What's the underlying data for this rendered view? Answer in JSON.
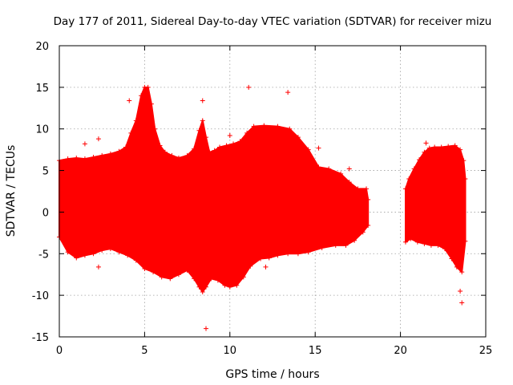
{
  "chart_data": {
    "type": "scatter",
    "title": "Day 177 of 2011, Sidereal Day-to-day VTEC variation (SDTVAR) for receiver mizu",
    "xlabel": "GPS time / hours",
    "ylabel": "SDTVAR / TECUs",
    "xlim": [
      0,
      25
    ],
    "ylim": [
      -15,
      20
    ],
    "xticks": [
      0,
      5,
      10,
      15,
      20,
      25
    ],
    "yticks": [
      -15,
      -10,
      -5,
      0,
      5,
      10,
      15,
      20
    ],
    "grid": true,
    "marker": "+",
    "colors": {
      "series": "#ff0000",
      "grid": "#a0a0a0",
      "axis": "#000000"
    },
    "series": [
      {
        "name": "SDTVAR",
        "envelope_upper": [
          [
            0.0,
            6.2
          ],
          [
            0.5,
            6.4
          ],
          [
            1.0,
            6.5
          ],
          [
            1.5,
            6.4
          ],
          [
            2.0,
            6.6
          ],
          [
            2.5,
            6.8
          ],
          [
            3.0,
            7.0
          ],
          [
            3.5,
            7.3
          ],
          [
            3.9,
            7.8
          ],
          [
            4.2,
            9.5
          ],
          [
            4.5,
            11.0
          ],
          [
            4.8,
            14.0
          ],
          [
            5.0,
            15.0
          ],
          [
            5.2,
            15.0
          ],
          [
            5.4,
            13.0
          ],
          [
            5.6,
            10.0
          ],
          [
            5.9,
            8.0
          ],
          [
            6.2,
            7.2
          ],
          [
            6.6,
            6.8
          ],
          [
            7.0,
            6.5
          ],
          [
            7.5,
            6.8
          ],
          [
            7.9,
            7.6
          ],
          [
            8.2,
            9.8
          ],
          [
            8.4,
            11.0
          ],
          [
            8.6,
            9.0
          ],
          [
            8.8,
            7.2
          ],
          [
            9.1,
            7.4
          ],
          [
            9.4,
            7.8
          ],
          [
            9.8,
            8.0
          ],
          [
            10.2,
            8.2
          ],
          [
            10.6,
            8.5
          ],
          [
            11.0,
            9.5
          ],
          [
            11.4,
            10.3
          ],
          [
            12.0,
            10.4
          ],
          [
            12.8,
            10.3
          ],
          [
            13.5,
            10.0
          ],
          [
            14.0,
            9.0
          ],
          [
            14.6,
            7.5
          ],
          [
            15.2,
            5.4
          ],
          [
            15.8,
            5.2
          ],
          [
            16.5,
            4.6
          ],
          [
            17.0,
            3.6
          ],
          [
            17.5,
            2.8
          ],
          [
            18.0,
            2.8
          ],
          [
            18.1,
            1.5
          ]
        ],
        "envelope_lower": [
          [
            0.0,
            -3.0
          ],
          [
            0.5,
            -4.8
          ],
          [
            1.0,
            -5.5
          ],
          [
            1.5,
            -5.2
          ],
          [
            2.0,
            -5.0
          ],
          [
            2.5,
            -4.6
          ],
          [
            3.0,
            -4.4
          ],
          [
            3.5,
            -4.8
          ],
          [
            4.0,
            -5.2
          ],
          [
            4.5,
            -5.8
          ],
          [
            5.0,
            -6.8
          ],
          [
            5.5,
            -7.2
          ],
          [
            6.0,
            -7.8
          ],
          [
            6.5,
            -8.0
          ],
          [
            7.0,
            -7.5
          ],
          [
            7.5,
            -7.0
          ],
          [
            7.9,
            -8.0
          ],
          [
            8.2,
            -9.0
          ],
          [
            8.4,
            -9.6
          ],
          [
            8.6,
            -9.0
          ],
          [
            8.9,
            -8.0
          ],
          [
            9.3,
            -8.2
          ],
          [
            9.7,
            -8.8
          ],
          [
            10.0,
            -9.0
          ],
          [
            10.4,
            -8.8
          ],
          [
            10.8,
            -7.8
          ],
          [
            11.2,
            -6.5
          ],
          [
            11.8,
            -5.6
          ],
          [
            12.3,
            -5.5
          ],
          [
            12.8,
            -5.2
          ],
          [
            13.4,
            -5.0
          ],
          [
            14.0,
            -5.0
          ],
          [
            14.6,
            -4.8
          ],
          [
            15.4,
            -4.3
          ],
          [
            16.2,
            -4.0
          ],
          [
            16.8,
            -4.0
          ],
          [
            17.3,
            -3.4
          ],
          [
            17.8,
            -2.4
          ],
          [
            18.1,
            -1.6
          ]
        ],
        "envelope_upper_2": [
          [
            20.3,
            2.8
          ],
          [
            20.5,
            4.0
          ],
          [
            20.8,
            5.2
          ],
          [
            21.1,
            6.3
          ],
          [
            21.4,
            7.2
          ],
          [
            21.7,
            7.7
          ],
          [
            22.0,
            7.8
          ],
          [
            22.4,
            7.8
          ],
          [
            22.8,
            7.9
          ],
          [
            23.2,
            8.0
          ],
          [
            23.5,
            7.5
          ],
          [
            23.7,
            6.2
          ],
          [
            23.8,
            4.0
          ]
        ],
        "envelope_lower_2": [
          [
            20.3,
            -3.6
          ],
          [
            20.6,
            -3.2
          ],
          [
            21.0,
            -3.6
          ],
          [
            21.4,
            -3.8
          ],
          [
            21.8,
            -4.0
          ],
          [
            22.2,
            -4.0
          ],
          [
            22.6,
            -4.4
          ],
          [
            23.0,
            -5.6
          ],
          [
            23.3,
            -6.6
          ],
          [
            23.6,
            -7.2
          ],
          [
            23.8,
            -3.5
          ]
        ],
        "outliers": [
          [
            13.4,
            14.4
          ],
          [
            8.6,
            -14.0
          ],
          [
            2.3,
            -6.6
          ],
          [
            1.5,
            8.2
          ],
          [
            2.3,
            8.8
          ],
          [
            4.1,
            13.4
          ],
          [
            8.4,
            13.4
          ],
          [
            11.1,
            15.0
          ],
          [
            15.2,
            7.7
          ],
          [
            17.0,
            5.2
          ],
          [
            23.6,
            -10.9
          ],
          [
            23.5,
            -9.5
          ],
          [
            21.5,
            8.3
          ],
          [
            10.0,
            9.2
          ],
          [
            12.1,
            -6.6
          ]
        ]
      }
    ]
  }
}
